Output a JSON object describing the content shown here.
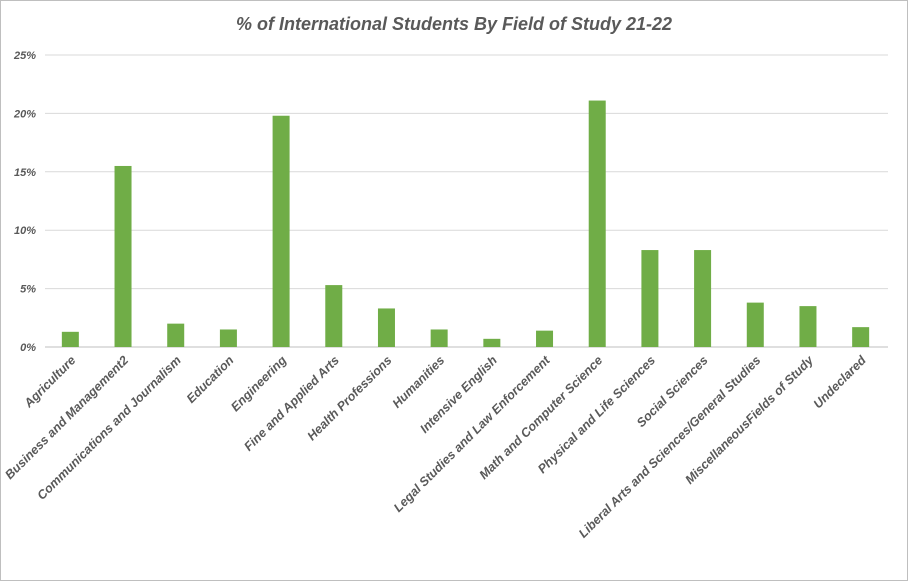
{
  "chart_data": {
    "type": "bar",
    "title": "% of International Students By Field of Study 21-22",
    "xlabel": "",
    "ylabel": "",
    "ylim": [
      0,
      25
    ],
    "y_ticks": [
      0,
      5,
      10,
      15,
      20,
      25
    ],
    "y_tick_labels": [
      "0%",
      "5%",
      "10%",
      "15%",
      "20%",
      "25%"
    ],
    "grid": true,
    "legend": "none",
    "bar_color": "#70ad47",
    "categories": [
      "Agriculture",
      "Business and Management2",
      "Communications and Journalism",
      "Education",
      "Engineering",
      "Fine and Applied Arts",
      "Health Professions",
      "Humanities",
      "Intensive English",
      "Legal Studies and Law Enforcement",
      "Math and Computer Science",
      "Physical and Life Sciences",
      "Social Sciences",
      "Liberal Arts and Sciences/General Studies",
      "MiscellaneousFields of Study",
      "Undeclared"
    ],
    "values": [
      1.3,
      15.5,
      2.0,
      1.5,
      19.8,
      5.3,
      3.3,
      1.5,
      0.7,
      1.4,
      21.1,
      8.3,
      8.3,
      3.8,
      3.5,
      1.7
    ]
  }
}
